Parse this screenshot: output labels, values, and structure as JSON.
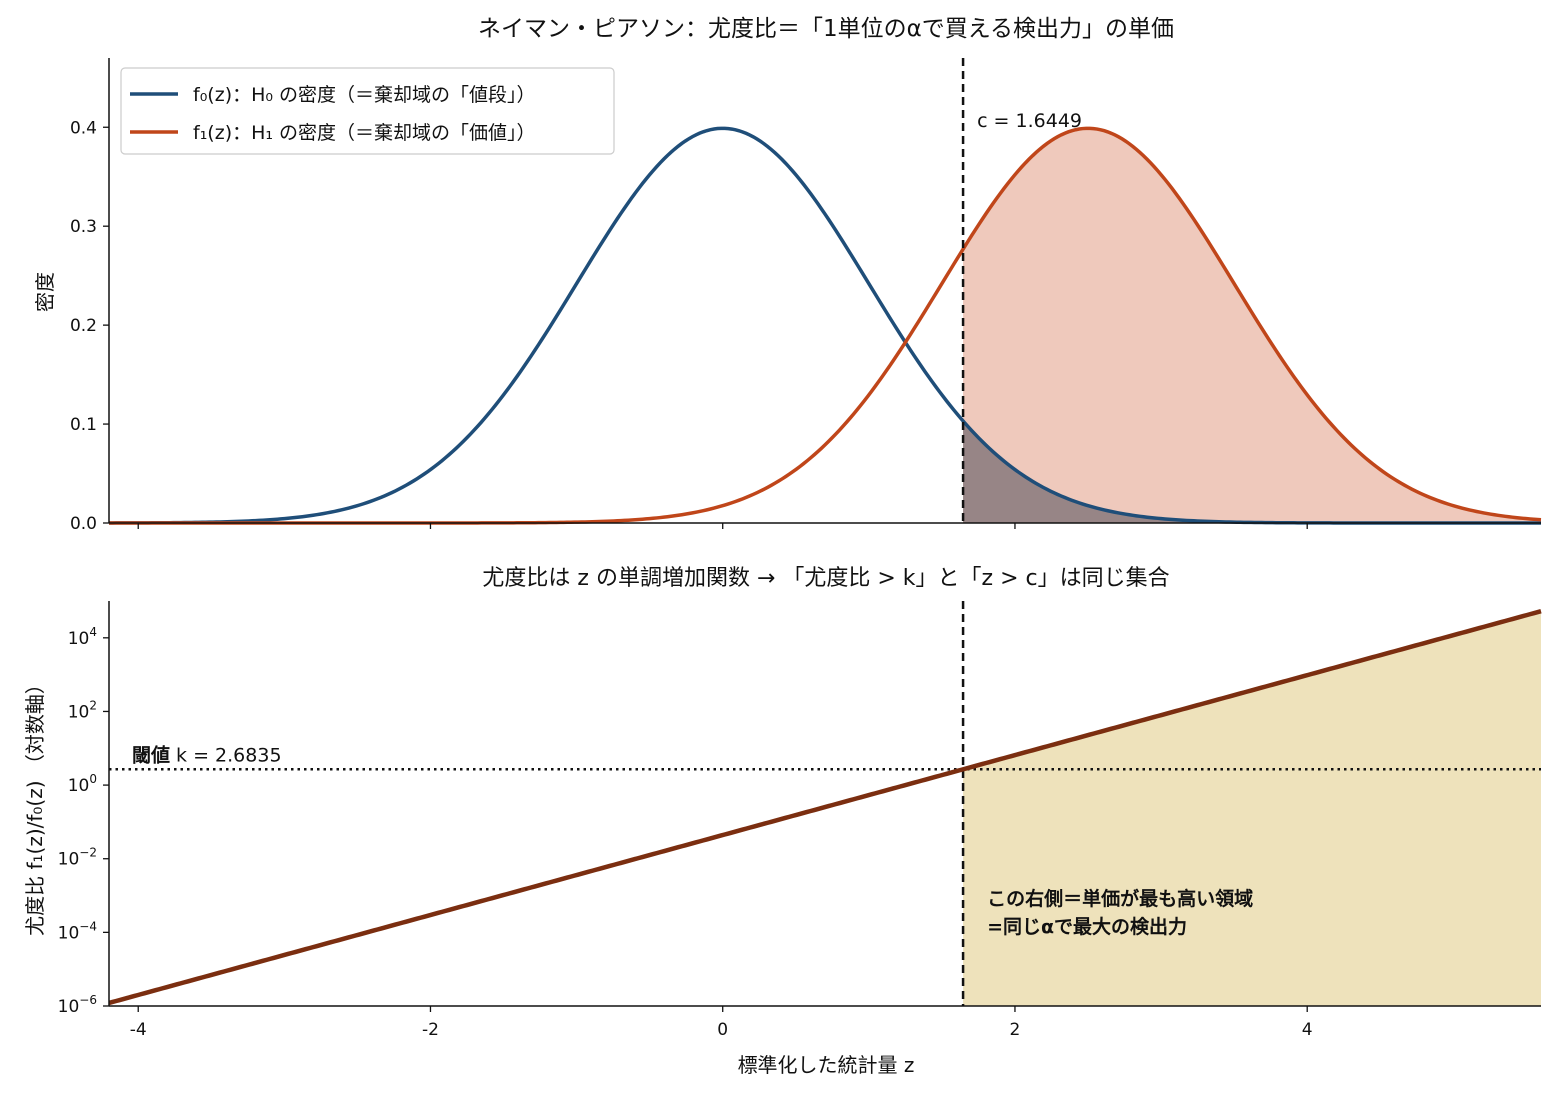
{
  "colors": {
    "h0": "#1f4e79",
    "h1": "#c0461a",
    "h1_fill": "#efc9bc",
    "overlap_fill": "#978586",
    "ratio_line": "#7b2e10",
    "ratio_fill": "#eee2bb",
    "note_text": "#7b2e10",
    "axis": "#111111"
  },
  "chart_data": [
    {
      "type": "line",
      "title": "ネイマン・ピアソン：尤度比＝「1単位のαで買える検出力」の単価",
      "xlabel": "",
      "ylabel": "密度",
      "xlim": [
        -4.2,
        5.6
      ],
      "ylim": [
        0,
        0.47
      ],
      "yticks": [
        0.0,
        0.1,
        0.2,
        0.3,
        0.4
      ],
      "ytick_labels": [
        "0.0",
        "0.1",
        "0.2",
        "0.3",
        "0.4"
      ],
      "legend_position": "top-left",
      "series": [
        {
          "name": "f₀(z)：H₀ の密度（＝棄却域の「値段」）",
          "distribution": "normal",
          "mean": 0,
          "sd": 1
        },
        {
          "name": "f₁(z)：H₁ の密度（＝棄却域の「価値」）",
          "distribution": "normal",
          "mean": 2.5,
          "sd": 1
        }
      ],
      "critical_value": 1.6449,
      "critical_label": "c = 1.6449",
      "shaded_region": "z > c"
    },
    {
      "type": "line",
      "title": "尤度比は z の単調増加関数 → 「尤度比 > k」と「z > c」は同じ集合",
      "xlabel": "標準化した統計量 z",
      "ylabel": "尤度比 f₁(z)/f₀(z) （対数軸）",
      "xlim": [
        -4.2,
        5.6
      ],
      "xticks": [
        -4,
        -2,
        0,
        2,
        4
      ],
      "xtick_labels": [
        "-4",
        "-2",
        "0",
        "2",
        "4"
      ],
      "yscale": "log",
      "ylim": [
        1e-06,
        100000
      ],
      "yticks": [
        1e-06,
        0.0001,
        0.01,
        1,
        100,
        10000
      ],
      "ytick_labels": [
        {
          "base": "10",
          "exp": "−6"
        },
        {
          "base": "10",
          "exp": "−4"
        },
        {
          "base": "10",
          "exp": "−2"
        },
        {
          "base": "10",
          "exp": "0"
        },
        {
          "base": "10",
          "exp": "2"
        },
        {
          "base": "10",
          "exp": "4"
        }
      ],
      "series": [
        {
          "name": "",
          "function": "exp(2.5z − 3.125)"
        }
      ],
      "threshold_k": 2.6835,
      "threshold_label_bold": "閾値",
      "threshold_label_rest": " k = 2.6835",
      "critical_value": 1.6449,
      "annotation": [
        "この右側＝単価が最も高い領域",
        "=同じαで最大の検出力"
      ]
    }
  ]
}
